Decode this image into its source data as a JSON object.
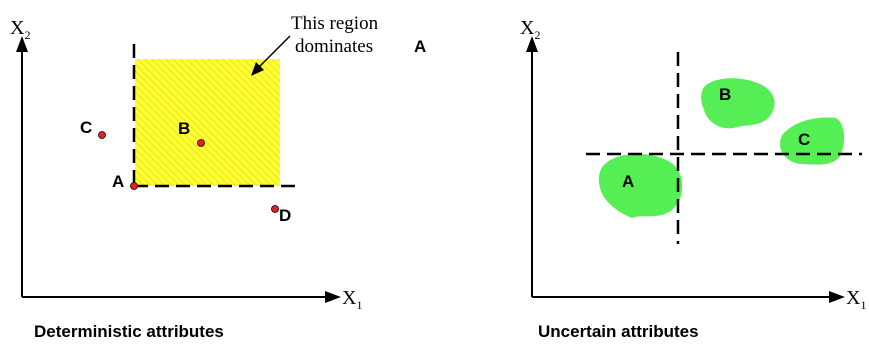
{
  "left_panel": {
    "caption": "Deterministic attributes",
    "x_axis": {
      "label": "X",
      "subscript": "1"
    },
    "y_axis": {
      "label": "X",
      "subscript": "2"
    },
    "annotation": {
      "line1": "This region",
      "line2": "dominates",
      "target": "A"
    },
    "points": [
      {
        "label": "A"
      },
      {
        "label": "B"
      },
      {
        "label": "C"
      },
      {
        "label": "D"
      }
    ],
    "colors": {
      "region_fill": "#ffff33",
      "region_hatch": "#d9d900",
      "point": "#e8201e"
    }
  },
  "right_panel": {
    "caption": "Uncertain attributes",
    "x_axis": {
      "label": "X",
      "subscript": "1"
    },
    "y_axis": {
      "label": "X",
      "subscript": "2"
    },
    "regions": [
      {
        "label": "A"
      },
      {
        "label": "B"
      },
      {
        "label": "C"
      }
    ],
    "colors": {
      "region_fill": "#55ee55"
    }
  }
}
